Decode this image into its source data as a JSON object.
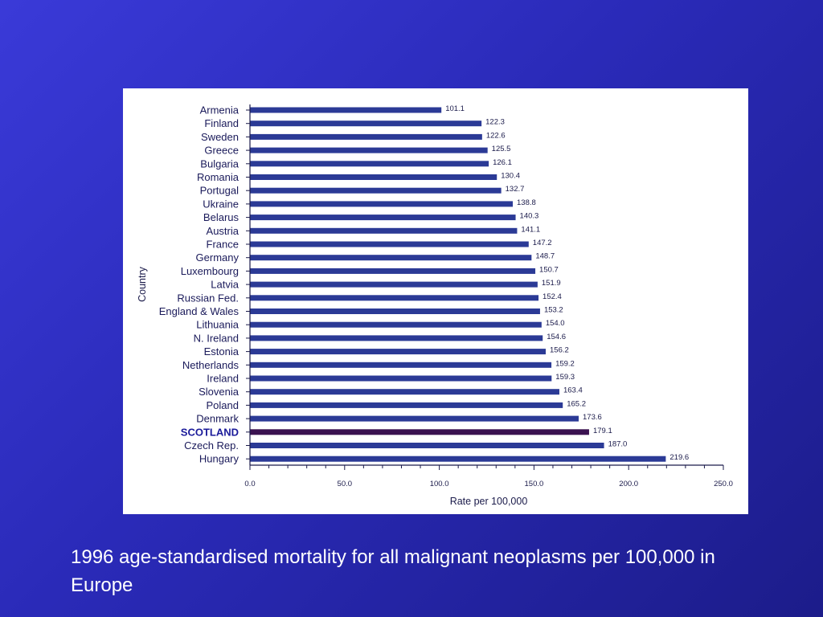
{
  "chart_data": {
    "type": "bar",
    "orientation": "horizontal",
    "categories": [
      "Armenia",
      "Finland",
      "Sweden",
      "Greece",
      "Bulgaria",
      "Romania",
      "Portugal",
      "Ukraine",
      "Belarus",
      "Austria",
      "France",
      "Germany",
      "Luxembourg",
      "Latvia",
      "Russian Fed.",
      "England & Wales",
      "Lithuania",
      "N. Ireland",
      "Estonia",
      "Netherlands",
      "Ireland",
      "Slovenia",
      "Poland",
      "Denmark",
      "SCOTLAND",
      "Czech Rep.",
      "Hungary"
    ],
    "values": [
      101.1,
      122.3,
      122.6,
      125.5,
      126.1,
      130.4,
      132.7,
      138.8,
      140.3,
      141.1,
      147.2,
      148.7,
      150.7,
      151.9,
      152.4,
      153.2,
      154.0,
      154.6,
      156.2,
      159.2,
      159.3,
      163.4,
      165.2,
      173.6,
      179.1,
      187.0,
      219.6
    ],
    "value_labels": [
      "101.1",
      "122.3",
      "122.6",
      "125.5",
      "126.1",
      "130.4",
      "132.7",
      "138.8",
      "140.3",
      "141.1",
      "147.2",
      "148.7",
      "150.7",
      "151.9",
      "152.4",
      "153.2",
      "154.0",
      "154.6",
      "156.2",
      "159.2",
      "159.3",
      "163.4",
      "165.2",
      "173.6",
      "179.1",
      "187.0",
      "219.6"
    ],
    "highlight": "SCOTLAND",
    "xlabel": "Rate per 100,000",
    "ylabel": "Country",
    "xlim": [
      0,
      250
    ],
    "xticks": [
      0,
      50,
      100,
      150,
      200,
      250
    ],
    "xtick_labels": [
      "0.0",
      "50.0",
      "100.0",
      "150.0",
      "200.0",
      "250.0"
    ],
    "grid": false,
    "colors": {
      "bar": "#2b3a96",
      "highlight_bar": "#3a1250",
      "highlight_label": "#1a1a9a"
    }
  },
  "caption": "1996 age-standardised mortality for all malignant neoplasms per 100,000 in Europe"
}
